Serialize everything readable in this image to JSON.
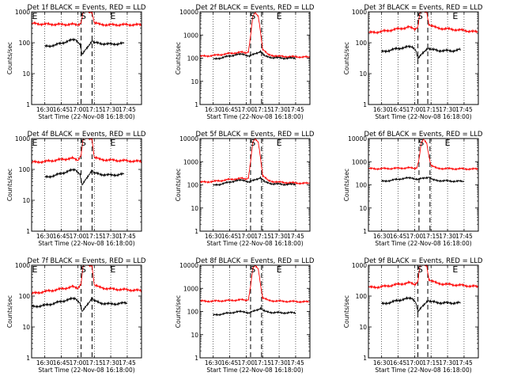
{
  "chart_data": [
    {
      "type": "line",
      "title": "Det 1f BLACK = Events, RED = LLD",
      "xlabel": "Start Time (22-Nov-08 16:18:00)",
      "ylabel": "Counts/sec",
      "yscale": "log",
      "ylim": [
        1,
        1000
      ],
      "xlim": [
        "16:18",
        "17:58"
      ],
      "x_ticks": [
        "16:30",
        "16:45",
        "17:00",
        "17:15",
        "17:30",
        "17:45"
      ],
      "y_ticks": [
        "1",
        "10",
        "100",
        "1000"
      ],
      "grid_x": "dotted",
      "markers": [
        {
          "label": "E",
          "x": "16:18"
        },
        {
          "label": "S",
          "x": "17:05"
        },
        {
          "label": "E",
          "x": "17:32"
        }
      ],
      "dashed_lines": [
        "17:03",
        "17:13"
      ],
      "series": [
        {
          "color": "#ff0000",
          "x": [
            "16:18",
            "16:30",
            "16:45",
            "16:55",
            "17:00",
            "17:03",
            "17:05",
            "17:08",
            "17:10",
            "17:13",
            "17:15",
            "17:20",
            "17:30",
            "17:45",
            "17:58"
          ],
          "values": [
            420,
            400,
            390,
            395,
            380,
            450,
            1000,
            1000,
            1000,
            1000,
            450,
            390,
            380,
            385,
            380
          ]
        },
        {
          "color": "#000000",
          "x": [
            "16:30",
            "16:40",
            "16:50",
            "16:58",
            "17:02",
            "17:04",
            "17:13",
            "17:15",
            "17:20",
            "17:30",
            "17:42"
          ],
          "values": [
            75,
            85,
            110,
            130,
            90,
            40,
            120,
            100,
            95,
            90,
            95
          ]
        }
      ]
    },
    {
      "type": "line",
      "title": "Det 2f BLACK = Events, RED = LLD",
      "xlabel": "Start Time (22-Nov-08 16:18:00)",
      "ylabel": "Counts/sec",
      "yscale": "log",
      "ylim": [
        1,
        10000
      ],
      "xlim": [
        "16:18",
        "17:58"
      ],
      "x_ticks": [
        "16:30",
        "16:45",
        "17:00",
        "17:15",
        "17:30",
        "17:45"
      ],
      "y_ticks": [
        "1",
        "10",
        "100",
        "1000",
        "10000"
      ],
      "grid_x": "dotted",
      "markers": [
        {
          "label": "S",
          "x": "17:06"
        },
        {
          "label": "E",
          "x": "17:30"
        }
      ],
      "dashed_lines": [
        "17:04",
        "17:14"
      ],
      "series": [
        {
          "color": "#ff0000",
          "x": [
            "16:18",
            "16:30",
            "16:45",
            "16:55",
            "17:00",
            "17:02",
            "17:04",
            "17:06",
            "17:08",
            "17:11",
            "17:13",
            "17:15",
            "17:20",
            "17:30",
            "17:45",
            "17:58"
          ],
          "values": [
            120,
            130,
            160,
            180,
            170,
            200,
            900,
            6000,
            9000,
            6500,
            1500,
            250,
            140,
            120,
            115,
            110
          ]
        },
        {
          "color": "#000000",
          "x": [
            "16:30",
            "16:40",
            "16:50",
            "16:58",
            "17:03",
            "17:13",
            "17:17",
            "17:25",
            "17:35",
            "17:45"
          ],
          "values": [
            90,
            110,
            140,
            150,
            120,
            200,
            120,
            105,
            100,
            100
          ]
        }
      ]
    },
    {
      "type": "line",
      "title": "Det 3f BLACK = Events, RED = LLD",
      "xlabel": "Start Time (22-Nov-08 16:18:00)",
      "ylabel": "Counts/sec",
      "yscale": "log",
      "ylim": [
        1,
        1000
      ],
      "xlim": [
        "16:18",
        "17:58"
      ],
      "x_ticks": [
        "16:30",
        "16:45",
        "17:00",
        "17:15",
        "17:30",
        "17:45"
      ],
      "y_ticks": [
        "1",
        "10",
        "100",
        "1000"
      ],
      "grid_x": "dotted",
      "markers": [
        {
          "label": "S",
          "x": "17:05"
        },
        {
          "label": "E",
          "x": "17:37"
        }
      ],
      "dashed_lines": [
        "17:03",
        "17:12"
      ],
      "series": [
        {
          "color": "#ff0000",
          "x": [
            "16:18",
            "16:30",
            "16:45",
            "16:55",
            "17:00",
            "17:03",
            "17:05",
            "17:08",
            "17:11",
            "17:13",
            "17:20",
            "17:30",
            "17:45",
            "17:58"
          ],
          "values": [
            210,
            230,
            280,
            320,
            280,
            330,
            1000,
            1000,
            1000,
            400,
            300,
            280,
            250,
            220
          ]
        },
        {
          "color": "#000000",
          "x": [
            "16:30",
            "16:40",
            "16:50",
            "16:58",
            "17:01",
            "17:03",
            "17:12",
            "17:15",
            "17:25",
            "17:35",
            "17:42"
          ],
          "values": [
            50,
            60,
            70,
            75,
            60,
            30,
            70,
            60,
            55,
            55,
            60
          ]
        }
      ]
    },
    {
      "type": "line",
      "title": "Det 4f BLACK = Events, RED = LLD",
      "xlabel": "Start Time (22-Nov-08 16:18:00)",
      "ylabel": "Counts/sec",
      "yscale": "log",
      "ylim": [
        1,
        1000
      ],
      "xlim": [
        "16:18",
        "17:58"
      ],
      "x_ticks": [
        "16:30",
        "16:45",
        "17:00",
        "17:15",
        "17:30",
        "17:45"
      ],
      "y_ticks": [
        "1",
        "10",
        "100",
        "1000"
      ],
      "grid_x": "dotted",
      "markers": [
        {
          "label": "E",
          "x": "16:18"
        },
        {
          "label": "S",
          "x": "17:05"
        },
        {
          "label": "E",
          "x": "17:32"
        }
      ],
      "dashed_lines": [
        "17:03",
        "17:13"
      ],
      "series": [
        {
          "color": "#ff0000",
          "x": [
            "16:18",
            "16:30",
            "16:45",
            "16:55",
            "17:00",
            "17:03",
            "17:05",
            "17:08",
            "17:10",
            "17:13",
            "17:15",
            "17:20",
            "17:30",
            "17:45",
            "17:58"
          ],
          "values": [
            170,
            180,
            210,
            230,
            200,
            300,
            1000,
            1000,
            1000,
            1000,
            250,
            210,
            200,
            190,
            180
          ]
        },
        {
          "color": "#000000",
          "x": [
            "16:30",
            "16:40",
            "16:50",
            "16:58",
            "17:02",
            "17:04",
            "17:13",
            "17:15",
            "17:20",
            "17:30",
            "17:42"
          ],
          "values": [
            55,
            65,
            85,
            100,
            70,
            30,
            100,
            75,
            70,
            65,
            70
          ]
        }
      ]
    },
    {
      "type": "line",
      "title": "Det 5f BLACK = Events, RED = LLD",
      "xlabel": "Start Time (22-Nov-08 16:18:00)",
      "ylabel": "Counts/sec",
      "yscale": "log",
      "ylim": [
        1,
        10000
      ],
      "xlim": [
        "16:18",
        "17:58"
      ],
      "x_ticks": [
        "16:30",
        "16:45",
        "17:00",
        "17:15",
        "17:30",
        "17:45"
      ],
      "y_ticks": [
        "1",
        "10",
        "100",
        "1000",
        "10000"
      ],
      "grid_x": "dotted",
      "markers": [
        {
          "label": "S",
          "x": "17:06"
        },
        {
          "label": "E",
          "x": "17:30"
        }
      ],
      "dashed_lines": [
        "17:04",
        "17:14"
      ],
      "series": [
        {
          "color": "#ff0000",
          "x": [
            "16:18",
            "16:30",
            "16:45",
            "16:55",
            "17:00",
            "17:02",
            "17:04",
            "17:06",
            "17:08",
            "17:11",
            "17:13",
            "17:15",
            "17:20",
            "17:30",
            "17:45",
            "17:58"
          ],
          "values": [
            130,
            140,
            170,
            190,
            180,
            210,
            1000,
            6500,
            9500,
            7000,
            1600,
            260,
            150,
            130,
            120,
            115
          ]
        },
        {
          "color": "#000000",
          "x": [
            "16:30",
            "16:40",
            "16:50",
            "16:58",
            "17:03",
            "17:13",
            "17:17",
            "17:25",
            "17:35",
            "17:45"
          ],
          "values": [
            95,
            115,
            150,
            160,
            130,
            210,
            130,
            110,
            105,
            105
          ]
        }
      ]
    },
    {
      "type": "line",
      "title": "Det 6f BLACK = Events, RED = LLD",
      "xlabel": "Start Time (22-Nov-08 16:18:00)",
      "ylabel": "Counts/sec",
      "yscale": "log",
      "ylim": [
        1,
        10000
      ],
      "xlim": [
        "16:18",
        "17:58"
      ],
      "x_ticks": [
        "16:30",
        "16:45",
        "17:00",
        "17:15",
        "17:30",
        "17:45"
      ],
      "y_ticks": [
        "1",
        "10",
        "100",
        "1000",
        "10000"
      ],
      "grid_x": "dotted",
      "markers": [
        {
          "label": "S",
          "x": "17:06"
        },
        {
          "label": "E",
          "x": "17:30"
        }
      ],
      "dashed_lines": [
        "17:04",
        "17:14"
      ],
      "series": [
        {
          "color": "#ff0000",
          "x": [
            "16:18",
            "16:30",
            "16:45",
            "16:55",
            "17:00",
            "17:02",
            "17:04",
            "17:06",
            "17:08",
            "17:11",
            "17:13",
            "17:15",
            "17:20",
            "17:30",
            "17:45",
            "17:58"
          ],
          "values": [
            500,
            500,
            520,
            540,
            520,
            560,
            1200,
            6000,
            9000,
            6500,
            1800,
            700,
            520,
            500,
            490,
            480
          ]
        },
        {
          "color": "#000000",
          "x": [
            "16:30",
            "16:40",
            "16:50",
            "16:58",
            "17:03",
            "17:13",
            "17:17",
            "17:25",
            "17:35",
            "17:45"
          ],
          "values": [
            140,
            160,
            190,
            200,
            170,
            220,
            160,
            150,
            145,
            140
          ]
        }
      ]
    },
    {
      "type": "line",
      "title": "Det 7f BLACK = Events, RED = LLD",
      "xlabel": "Start Time (22-Nov-08 16:18:00)",
      "ylabel": "Counts/sec",
      "yscale": "log",
      "ylim": [
        1,
        1000
      ],
      "xlim": [
        "16:18",
        "17:58"
      ],
      "x_ticks": [
        "16:30",
        "16:45",
        "17:00",
        "17:15",
        "17:30",
        "17:45"
      ],
      "y_ticks": [
        "1",
        "10",
        "100",
        "1000"
      ],
      "grid_x": "dotted",
      "markers": [
        {
          "label": "E",
          "x": "16:18"
        },
        {
          "label": "S",
          "x": "17:05"
        },
        {
          "label": "E",
          "x": "17:32"
        }
      ],
      "dashed_lines": [
        "17:03",
        "17:13"
      ],
      "series": [
        {
          "color": "#ff0000",
          "x": [
            "16:18",
            "16:30",
            "16:45",
            "16:55",
            "17:00",
            "17:03",
            "17:05",
            "17:08",
            "17:10",
            "17:13",
            "17:15",
            "17:20",
            "17:30",
            "17:45",
            "17:58"
          ],
          "values": [
            120,
            140,
            170,
            200,
            180,
            260,
            1000,
            1000,
            1000,
            1000,
            230,
            190,
            170,
            160,
            150
          ]
        },
        {
          "color": "#000000",
          "x": [
            "16:18",
            "16:30",
            "16:40",
            "16:50",
            "16:58",
            "17:02",
            "17:04",
            "17:13",
            "17:15",
            "17:20",
            "17:30",
            "17:45"
          ],
          "values": [
            45,
            50,
            60,
            75,
            85,
            60,
            30,
            90,
            70,
            60,
            55,
            60
          ]
        }
      ]
    },
    {
      "type": "line",
      "title": "Det 8f BLACK = Events, RED = LLD",
      "xlabel": "Start Time (22-Nov-08 16:18:00)",
      "ylabel": "Counts/sec",
      "yscale": "log",
      "ylim": [
        1,
        10000
      ],
      "xlim": [
        "16:18",
        "17:58"
      ],
      "x_ticks": [
        "16:30",
        "16:45",
        "17:00",
        "17:15",
        "17:30",
        "17:45"
      ],
      "y_ticks": [
        "1",
        "10",
        "100",
        "1000",
        "10000"
      ],
      "grid_x": "dotted",
      "markers": [
        {
          "label": "S",
          "x": "17:06"
        },
        {
          "label": "E",
          "x": "17:30"
        }
      ],
      "dashed_lines": [
        "17:04",
        "17:14"
      ],
      "series": [
        {
          "color": "#ff0000",
          "x": [
            "16:18",
            "16:30",
            "16:45",
            "16:55",
            "17:00",
            "17:02",
            "17:04",
            "17:06",
            "17:08",
            "17:11",
            "17:13",
            "17:15",
            "17:20",
            "17:30",
            "17:45",
            "17:58"
          ],
          "values": [
            280,
            280,
            300,
            320,
            310,
            340,
            1200,
            7000,
            9500,
            7000,
            1600,
            400,
            300,
            280,
            270,
            260
          ]
        },
        {
          "color": "#000000",
          "x": [
            "16:30",
            "16:40",
            "16:50",
            "16:58",
            "17:03",
            "17:13",
            "17:17",
            "17:25",
            "17:35",
            "17:45"
          ],
          "values": [
            70,
            80,
            95,
            100,
            85,
            140,
            100,
            90,
            88,
            88
          ]
        }
      ]
    },
    {
      "type": "line",
      "title": "Det 9f BLACK = Events, RED = LLD",
      "xlabel": "Start Time (22-Nov-08 16:18:00)",
      "ylabel": "Counts/sec",
      "yscale": "log",
      "ylim": [
        1,
        1000
      ],
      "xlim": [
        "16:18",
        "17:58"
      ],
      "x_ticks": [
        "16:30",
        "16:45",
        "17:00",
        "17:15",
        "17:30",
        "17:45"
      ],
      "y_ticks": [
        "1",
        "10",
        "100",
        "1000"
      ],
      "grid_x": "dotted",
      "markers": [
        {
          "label": "S",
          "x": "17:05"
        },
        {
          "label": "E",
          "x": "17:37"
        }
      ],
      "dashed_lines": [
        "17:03",
        "17:12"
      ],
      "series": [
        {
          "color": "#ff0000",
          "x": [
            "16:18",
            "16:30",
            "16:45",
            "16:55",
            "17:00",
            "17:03",
            "17:05",
            "17:08",
            "17:11",
            "17:13",
            "17:20",
            "17:30",
            "17:45",
            "17:58"
          ],
          "values": [
            190,
            200,
            240,
            270,
            240,
            300,
            1000,
            1000,
            1000,
            350,
            260,
            240,
            220,
            200
          ]
        },
        {
          "color": "#000000",
          "x": [
            "16:30",
            "16:40",
            "16:50",
            "16:58",
            "17:01",
            "17:03",
            "17:12",
            "17:15",
            "17:25",
            "17:35",
            "17:42"
          ],
          "values": [
            55,
            65,
            80,
            85,
            65,
            30,
            75,
            65,
            60,
            60,
            60
          ]
        }
      ]
    }
  ]
}
